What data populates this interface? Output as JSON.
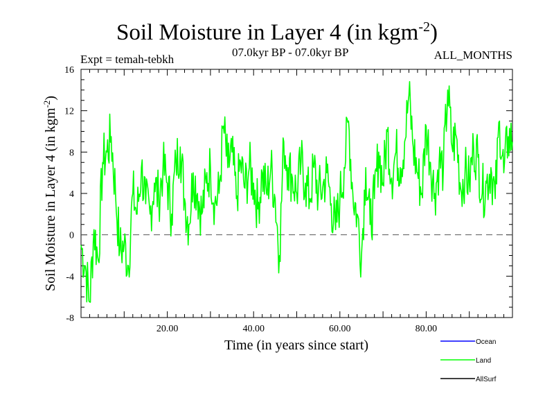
{
  "header": {
    "title_main": "Soil Moisture in Layer 4 (in kgm",
    "title_sup": "-2",
    "title_close": ")",
    "expt": "Expt = temah-tebkh",
    "period": "07.0kyr BP - 07.0kyr BP",
    "months": "ALL_MONTHS"
  },
  "chart_data": {
    "type": "line",
    "title": "Soil Moisture in Layer 4 (in kgm-2)",
    "xlabel": "Time (in years since start)",
    "ylabel": "Soil Moisture in Layer 4 (in kgm-2)",
    "ylabel_main": "Soil Moisture in Layer 4 (in kgm",
    "ylabel_sup": "-2",
    "ylabel_close": ")",
    "xlim": [
      0,
      100
    ],
    "ylim": [
      -8,
      16
    ],
    "x_ticks": [
      20,
      40,
      60,
      80
    ],
    "x_tick_labels": [
      "20.00",
      "40.00",
      "60.00",
      "80.00"
    ],
    "y_ticks": [
      -8,
      -4,
      0,
      4,
      8,
      12,
      16
    ],
    "y_tick_labels": [
      "-8",
      "-4",
      "0",
      "4",
      "8",
      "12",
      "16"
    ],
    "zero_line": 0,
    "legend": [
      {
        "name": "Ocean",
        "color": "#0000ff"
      },
      {
        "name": "Land",
        "color": "#00ff00"
      },
      {
        "name": "AllSurf",
        "color": "#000000"
      }
    ],
    "series": [
      {
        "name": "Land",
        "color": "#00ff00",
        "x": [
          0,
          1,
          2,
          3,
          4,
          5,
          6,
          7,
          8,
          9,
          10,
          11,
          12,
          13,
          14,
          15,
          16,
          17,
          18,
          19,
          20,
          21,
          22,
          23,
          24,
          25,
          26,
          27,
          28,
          29,
          30,
          31,
          32,
          33,
          34,
          35,
          36,
          37,
          38,
          39,
          40,
          41,
          42,
          43,
          44,
          45,
          46,
          47,
          48,
          49,
          50,
          51,
          52,
          53,
          54,
          55,
          56,
          57,
          58,
          59,
          60,
          61,
          62,
          63,
          64,
          65,
          66,
          67,
          68,
          69,
          70,
          71,
          72,
          73,
          74,
          75,
          76,
          77,
          78,
          79,
          80,
          81,
          82,
          83,
          84,
          85,
          86,
          87,
          88,
          89,
          90,
          91,
          92,
          93,
          94,
          95,
          96,
          97,
          98,
          99,
          100
        ],
        "values": [
          -1.0,
          -3.0,
          -6.5,
          0.5,
          -2.5,
          7.0,
          8.0,
          9.5,
          4.0,
          -1.5,
          -1.0,
          -3.0,
          4.0,
          2.0,
          6.5,
          3.0,
          2.0,
          5.0,
          3.5,
          6.5,
          5.0,
          2.0,
          7.0,
          8.5,
          3.5,
          1.0,
          6.0,
          4.0,
          2.0,
          5.0,
          6.5,
          3.0,
          4.0,
          10.5,
          6.5,
          8.0,
          3.5,
          7.0,
          4.5,
          6.5,
          5.0,
          2.5,
          6.0,
          4.0,
          6.5,
          3.5,
          -2.0,
          9.0,
          6.5,
          5.5,
          4.0,
          7.0,
          5.0,
          3.5,
          6.5,
          4.0,
          4.5,
          6.0,
          3.0,
          0.5,
          3.5,
          6.5,
          11.0,
          4.0,
          2.0,
          -2.0,
          6.5,
          1.0,
          3.5,
          8.0,
          5.0,
          10.0,
          5.5,
          8.0,
          6.5,
          9.0,
          13.5,
          8.5,
          6.0,
          4.0,
          10.5,
          7.0,
          4.0,
          7.0,
          6.5,
          14.0,
          8.5,
          9.5,
          4.5,
          6.0,
          5.0,
          8.5,
          7.5,
          4.0,
          5.0,
          6.5,
          3.5,
          11.0,
          6.0,
          9.5,
          9.0
        ]
      },
      {
        "name": "Ocean",
        "color": "#0000ff",
        "values": []
      },
      {
        "name": "AllSurf",
        "color": "#000000",
        "values": []
      }
    ]
  }
}
